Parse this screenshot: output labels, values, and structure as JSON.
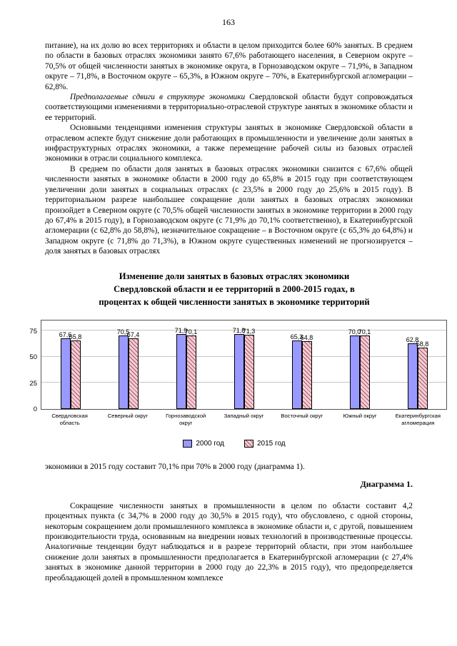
{
  "page": {
    "number": "163",
    "background": "#ffffff",
    "text_color": "#000000"
  },
  "paragraphs": {
    "p1": "питание), на их долю во всех территориях и области в целом приходится более 60% занятых. В среднем по области в базовых отраслях экономики занято 67,6% работающего населения, в Северном округе – 70,5% от общей численности занятых в экономике округа, в Горнозаводском округе – 71,9%, в Западном округе – 71,8%, в Восточном округе – 65,3%, в Южном округе – 70%, в Екатеринбургской агломерации – 62,8%.",
    "p2_italic": "Предполагаемые сдвиги в структуре экономики",
    "p2_rest": " Свердловской области будут сопровождаться соответствующими изменениями в территориально-отраслевой структуре занятых в экономике области и ее территорий.",
    "p3": "Основными тенденциями изменения структуры занятых в экономике Свердловской области в отраслевом аспекте будут снижение доли работающих в промышленности и увеличение доли занятых в инфраструктурных отраслях экономики, а также перемещение рабочей силы из базовых отраслей экономики в отрасли социального комплекса.",
    "p4": "В среднем по области доля занятых в базовых отраслях экономики снизится с 67,6% общей численности занятых в экономике области в 2000 году до 65,8% в 2015 году при соответствующем увеличении доли занятых в социальных отраслях (с 23,5% в 2000 году до 25,6% в 2015 году). В территориальном разрезе наибольшее сокращение доли занятых в базовых отраслях экономики произойдет в Северном округе (с 70,5% общей численности занятых в экономике территории в 2000 году до 67,4% в 2015 году), в Горнозаводском округе (с 71,9% до 70,1% соответственно), в Екатеринбургской агломерации (с 62,8% до 58,8%), незначительное сокращение – в Восточном округе (с 65,3% до 64,8%) и Западном округе (с 71,8% до 71,3%), в Южном округе существенных изменений не прогнозируется – доля занятых в базовых отраслях",
    "p5": "экономики в 2015 году составит 70,1% при 70% в 2000 году (диаграмма 1).",
    "diagram_label": "Диаграмма 1.",
    "p6": "Сокращение численности занятых в промышленности в целом по области составит 4,2 процентных пункта (с 34,7% в 2000 году до 30,5% в 2015 году), что обусловлено, с одной стороны, некоторым сокращением доли промышленного комплекса в экономике области и, с другой, повышением производительности труда, основанным на внедрении новых технологий в производственные процессы. Аналогичные тенденции будут наблюдаться и в разрезе территорий области, при этом наибольшее снижение доли занятых в промышленности предполагается в Екатеринбургской агломерации (с 27,4% занятых в экономике данной территории в 2000 году до 22,3% в 2015 году), что предопределяется преобладающей долей в промышленном комплексе"
  },
  "chart_data": {
    "type": "bar",
    "title": "Изменение доли занятых в базовых отраслях экономики Свердловской области и ее территорий в 2000-2015 годах, в процентах к общей численности занятых в экономике территорий",
    "title_lines": [
      "Изменение доли занятых в базовых отраслях экономики",
      "Свердловской области и ее территорий в 2000-2015 годах, в",
      "процентах к общей численности занятых в экономике территорий"
    ],
    "categories": [
      "Свердловская область",
      "Северный округ",
      "Горнозаводской округ",
      "Западный округ",
      "Восточный округ",
      "Южный округ",
      "Екатеринбургская агломерация"
    ],
    "series": [
      {
        "name": "2000 год",
        "color": "#9999ff",
        "fill": "solid",
        "values": [
          67.6,
          70.5,
          71.9,
          71.8,
          65.3,
          70.0,
          62.8
        ]
      },
      {
        "name": "2015 год",
        "color": "#f7ccd5",
        "fill": "diagonal-hatch",
        "values": [
          65.8,
          67.4,
          70.1,
          71.3,
          64.8,
          70.1,
          58.8
        ]
      }
    ],
    "value_labels": [
      [
        "67,6",
        "70,5",
        "71,9",
        "71,8",
        "65,3",
        "70,0",
        "62,8"
      ],
      [
        "65,8",
        "67,4",
        "70,1",
        "71,3",
        "64,8",
        "70,1",
        "58,8"
      ]
    ],
    "hatch_color": "#a05a68",
    "bar_border_color": "#000000",
    "y_ticks": [
      0,
      25,
      50,
      75
    ],
    "ylim": [
      0,
      85
    ],
    "grid": true,
    "legend_position": "bottom",
    "xlabel": "",
    "ylabel": ""
  }
}
